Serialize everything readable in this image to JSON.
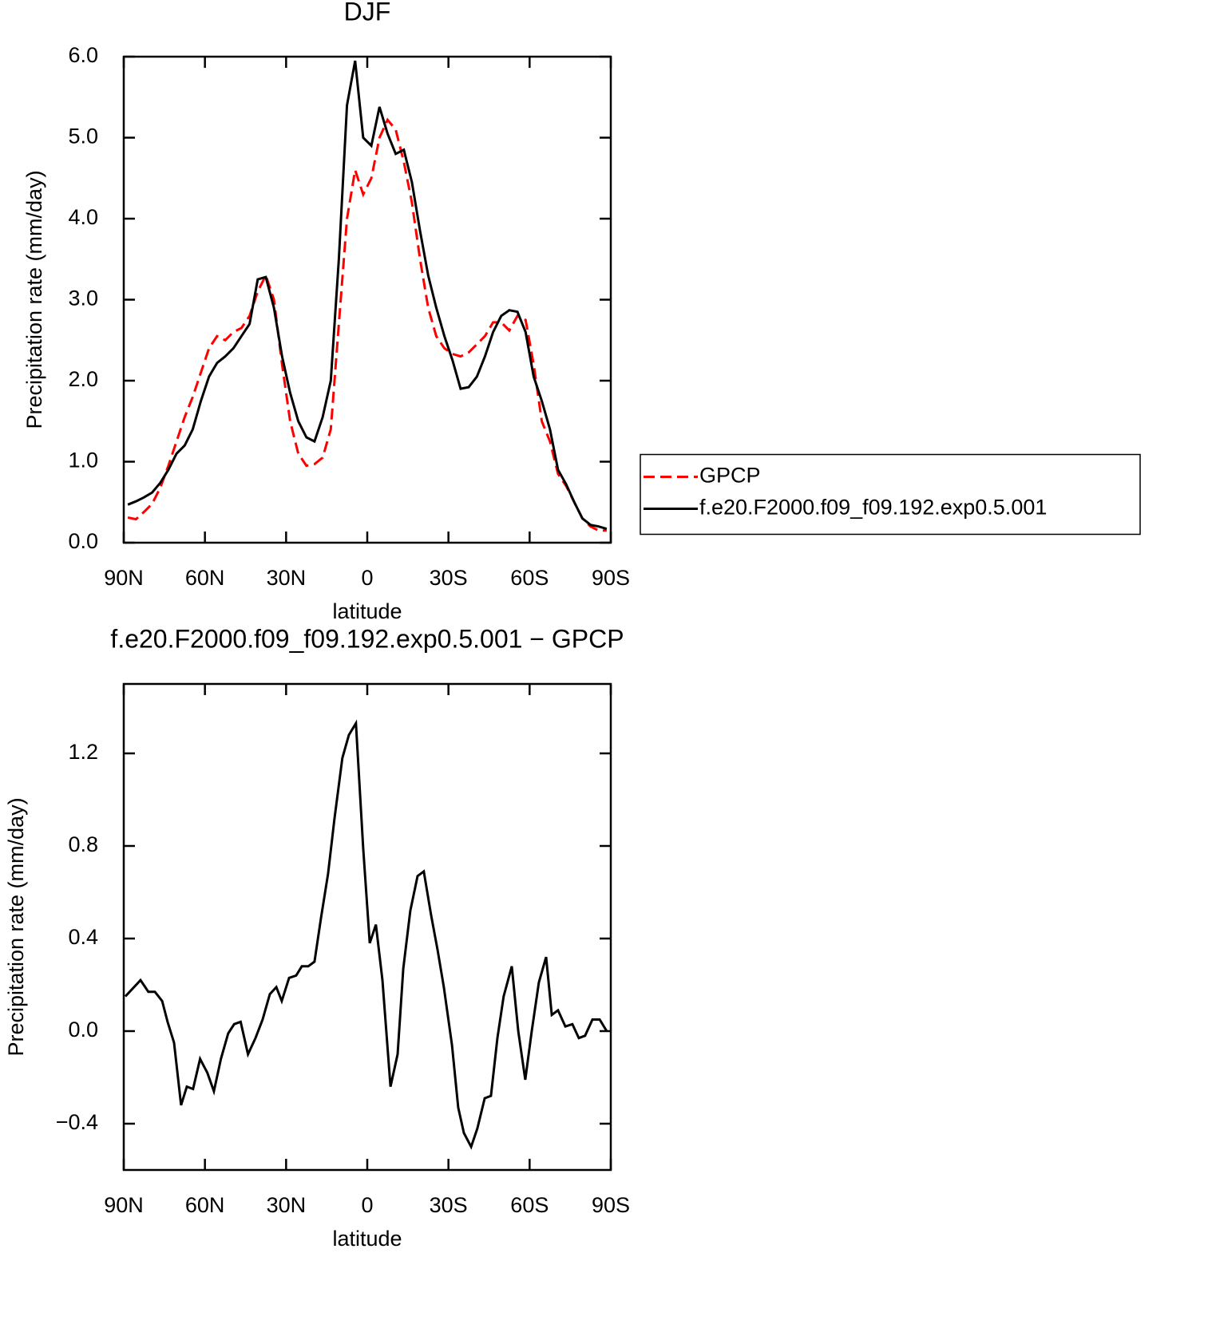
{
  "chart_data": [
    {
      "type": "line",
      "title": "DJF",
      "xlabel": "latitude",
      "ylabel": "Precipitation rate (mm/day)",
      "x": [
        88.5,
        85.5,
        82.5,
        79.5,
        76.5,
        73.5,
        70.5,
        67.5,
        64.5,
        61.5,
        58.5,
        55.5,
        52.5,
        49.5,
        46.5,
        43.5,
        40.5,
        37.5,
        34.5,
        31.5,
        28.5,
        25.5,
        22.5,
        19.5,
        16.5,
        13.5,
        10.5,
        7.5,
        4.5,
        1.5,
        -1.5,
        -4.5,
        -7.5,
        -10.5,
        -13.5,
        -16.5,
        -19.5,
        -22.5,
        -25.5,
        -28.5,
        -31.5,
        -34.5,
        -37.5,
        -40.5,
        -43.5,
        -46.5,
        -49.5,
        -52.5,
        -55.5,
        -58.5,
        -61.5,
        -64.5,
        -67.5,
        -70.5,
        -73.5,
        -76.5,
        -79.5,
        -82.5,
        -85.5,
        -88.5
      ],
      "xlim": [
        90,
        -90
      ],
      "xticks": [
        {
          "value": 90,
          "label": "90N"
        },
        {
          "value": 60,
          "label": "60N"
        },
        {
          "value": 30,
          "label": "30N"
        },
        0,
        {
          "value": -30,
          "label": "30S"
        },
        {
          "value": -60,
          "label": "60S"
        },
        {
          "value": -90,
          "label": "90S"
        }
      ],
      "ylim": [
        0,
        6
      ],
      "yticks": [
        {
          "value": 0,
          "label": "0.0"
        },
        {
          "value": 1,
          "label": "1.0"
        },
        {
          "value": 2,
          "label": "2.0"
        },
        {
          "value": 3,
          "label": "3.0"
        },
        {
          "value": 4,
          "label": "4.0"
        },
        {
          "value": 5,
          "label": "5.0"
        },
        {
          "value": 6,
          "label": "6.0"
        }
      ],
      "legend": "outside-right",
      "series": [
        {
          "name": "GPCP",
          "color": "#ff0000",
          "line_style": "dashed",
          "values": [
            0.31,
            0.29,
            0.38,
            0.48,
            0.68,
            0.95,
            1.25,
            1.55,
            1.8,
            2.1,
            2.4,
            2.55,
            2.5,
            2.6,
            2.65,
            2.8,
            3.1,
            3.3,
            3.0,
            2.2,
            1.5,
            1.1,
            0.95,
            0.97,
            1.05,
            1.4,
            2.7,
            4.0,
            4.6,
            4.3,
            4.5,
            5.0,
            5.22,
            5.1,
            4.7,
            4.2,
            3.5,
            2.9,
            2.55,
            2.4,
            2.33,
            2.3,
            2.35,
            2.45,
            2.55,
            2.72,
            2.72,
            2.62,
            2.8,
            2.75,
            2.2,
            1.5,
            1.25,
            0.85,
            0.7,
            0.5,
            0.3,
            0.2,
            0.15,
            0.15
          ]
        },
        {
          "name": "f.e20.F2000.f09_f09.192.exp0.5.001",
          "color": "#000000",
          "line_style": "solid",
          "values": [
            0.47,
            0.51,
            0.56,
            0.62,
            0.74,
            0.9,
            1.1,
            1.2,
            1.4,
            1.75,
            2.05,
            2.22,
            2.3,
            2.4,
            2.55,
            2.7,
            3.25,
            3.28,
            2.9,
            2.3,
            1.85,
            1.5,
            1.3,
            1.25,
            1.55,
            2.0,
            3.5,
            5.4,
            5.95,
            5.0,
            4.9,
            5.38,
            5.05,
            4.8,
            4.85,
            4.45,
            3.85,
            3.3,
            2.9,
            2.55,
            2.25,
            1.9,
            1.92,
            2.05,
            2.3,
            2.6,
            2.8,
            2.87,
            2.85,
            2.6,
            2.05,
            1.75,
            1.4,
            0.9,
            0.72,
            0.5,
            0.3,
            0.22,
            0.2,
            0.17
          ]
        }
      ]
    },
    {
      "type": "line",
      "title": "f.e20.F2000.f09_f09.192.exp0.5.001 − GPCP",
      "xlabel": "latitude",
      "ylabel": "Precipitation rate (mm/day)",
      "x": [
        89.4,
        83.8,
        80.9,
        78.5,
        75.8,
        73.8,
        71.4,
        68.8,
        66.7,
        64.4,
        61.8,
        59.1,
        56.7,
        54.1,
        51.4,
        49.2,
        46.8,
        44.1,
        41.3,
        38.7,
        36.0,
        33.6,
        31.6,
        28.9,
        26.3,
        24.2,
        21.8,
        19.5,
        17.1,
        14.5,
        12.1,
        9.2,
        6.8,
        4.2,
        1.5,
        -0.9,
        -3.2,
        -5.6,
        -8.6,
        -11.2,
        -13.3,
        -15.9,
        -18.6,
        -20.9,
        -23.6,
        -26.0,
        -28.3,
        -31.3,
        -33.6,
        -35.7,
        -38.4,
        -40.7,
        -43.4,
        -45.7,
        -48.1,
        -50.4,
        -53.4,
        -55.8,
        -58.4,
        -60.8,
        -63.4,
        -66.1,
        -68.2,
        -70.5,
        -73.2,
        -75.8,
        -78.2,
        -80.5,
        -83.2,
        -85.9,
        -88.5
      ],
      "xlim": [
        90,
        -90
      ],
      "xticks": [
        {
          "value": 90,
          "label": "90N"
        },
        {
          "value": 60,
          "label": "60N"
        },
        {
          "value": 30,
          "label": "30N"
        },
        0,
        {
          "value": -30,
          "label": "30S"
        },
        {
          "value": -60,
          "label": "60S"
        },
        {
          "value": -90,
          "label": "90S"
        }
      ],
      "ylim": [
        -0.6,
        1.5
      ],
      "yticks": [
        {
          "value": -0.4,
          "label": "−0.4"
        },
        {
          "value": 0,
          "label": "0.0"
        },
        0.4,
        0.8,
        1.2
      ],
      "series": [
        {
          "color": "#000000",
          "line_style": "solid",
          "values": [
            0.15,
            0.22,
            0.17,
            0.17,
            0.13,
            0.04,
            -0.05,
            -0.32,
            -0.24,
            -0.25,
            -0.12,
            -0.18,
            -0.26,
            -0.12,
            -0.01,
            0.03,
            0.04,
            -0.1,
            -0.03,
            0.05,
            0.16,
            0.19,
            0.13,
            0.23,
            0.24,
            0.28,
            0.28,
            0.3,
            0.49,
            0.68,
            0.92,
            1.18,
            1.28,
            1.33,
            0.79,
            0.38,
            0.46,
            0.22,
            -0.24,
            -0.1,
            0.27,
            0.52,
            0.67,
            0.69,
            0.5,
            0.35,
            0.19,
            -0.06,
            -0.33,
            -0.44,
            -0.5,
            -0.42,
            -0.29,
            -0.28,
            -0.03,
            0.15,
            0.28,
            0.0,
            -0.21,
            0.0,
            0.21,
            0.32,
            0.07,
            0.09,
            0.02,
            0.03,
            -0.03,
            -0.02,
            0.05,
            0.05,
            0.0
          ]
        }
      ]
    }
  ]
}
